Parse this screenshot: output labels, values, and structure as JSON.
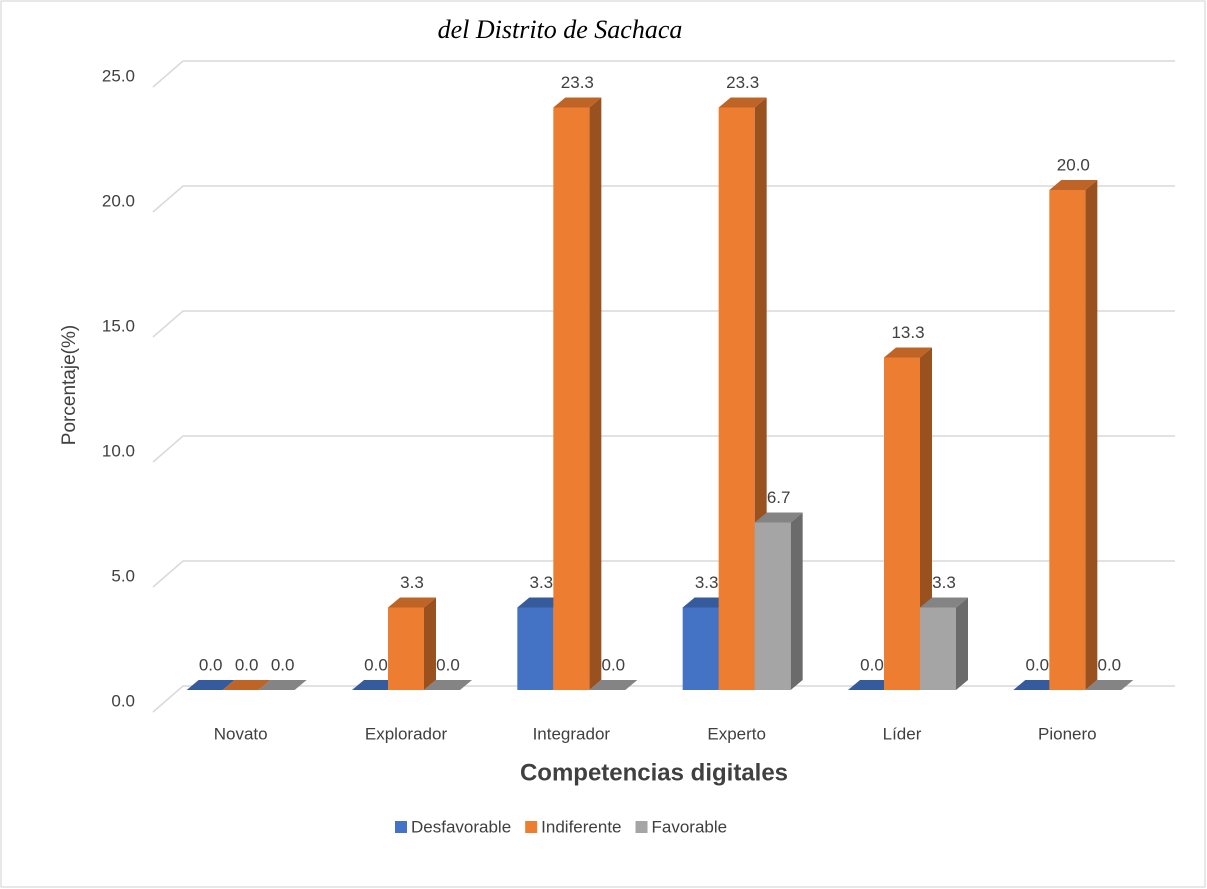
{
  "chart_data": {
    "type": "bar3d",
    "title": "del Distrito de Sachaca",
    "y_label": "Porcentaje(%)",
    "x_label": "Competencias digitales",
    "categories": [
      "Novato",
      "Explorador",
      "Integrador",
      "Experto",
      "Líder",
      "Pionero"
    ],
    "series": [
      {
        "name": "Desfavorable",
        "color": "#4472c4",
        "values": [
          0,
          0,
          3.3,
          3.3,
          0,
          0
        ],
        "value_labels": [
          "0.0",
          "0.0",
          "3.3",
          "3.3",
          "0.0",
          "0.0"
        ]
      },
      {
        "name": "Indiferente",
        "color": "#ed7d31",
        "values": [
          0,
          3.3,
          23.3,
          23.3,
          13.3,
          20
        ],
        "value_labels": [
          "0.0",
          "3.3",
          "23.3",
          "23.3",
          "13.3",
          "20.0"
        ]
      },
      {
        "name": "Favorable",
        "color": "#a5a5a5",
        "values": [
          0,
          0,
          0,
          6.7,
          3.3,
          0
        ],
        "value_labels": [
          "0.0",
          "0.0",
          "0.0",
          "6.7",
          "3.3",
          "0.0"
        ]
      }
    ],
    "ylim": [
      0,
      25
    ],
    "yticks": [
      {
        "value": 0,
        "label": "0.0"
      },
      {
        "value": 5,
        "label": "5.0"
      },
      {
        "value": 10,
        "label": "10.0"
      },
      {
        "value": 15,
        "label": "15.0"
      },
      {
        "value": 20,
        "label": "20.0"
      },
      {
        "value": 25,
        "label": "25.0"
      }
    ],
    "grid": true,
    "legend": "bottom"
  }
}
